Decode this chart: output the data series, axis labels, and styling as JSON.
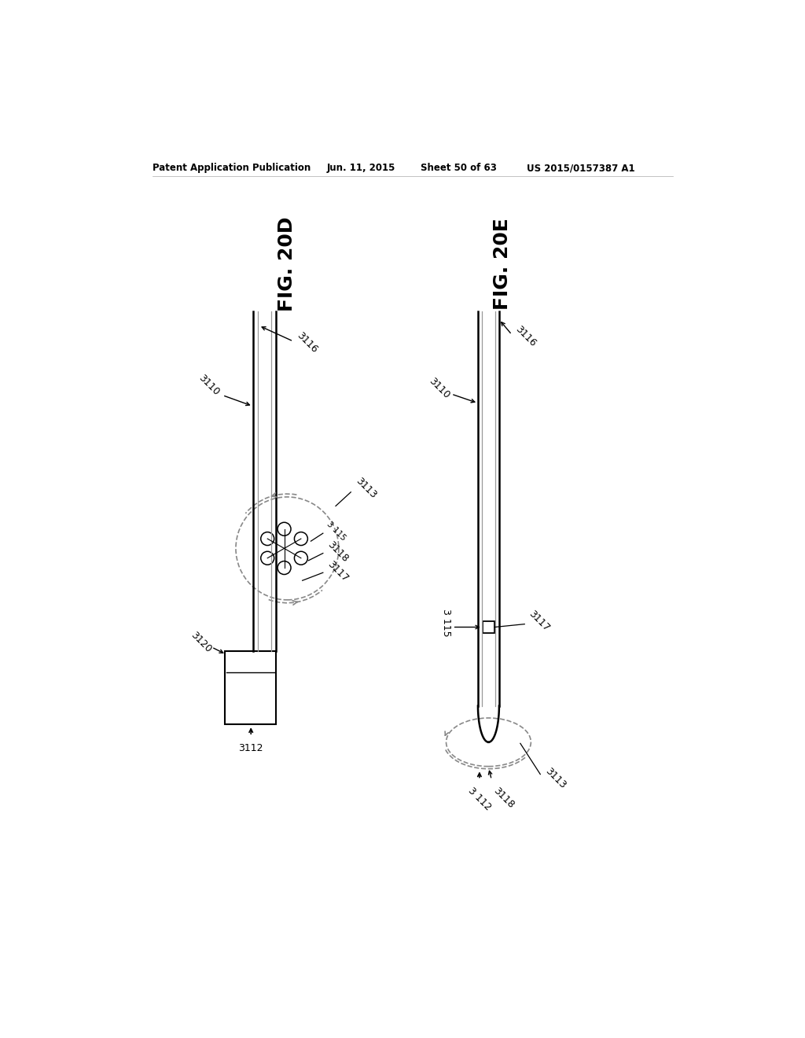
{
  "bg_color": "#ffffff",
  "header_text": "Patent Application Publication",
  "header_date": "Jun. 11, 2015",
  "header_sheet": "Sheet 50 of 63",
  "header_patent": "US 2015/0157387 A1",
  "fig_d_title": "FIG. 20D",
  "fig_e_title": "FIG. 20E",
  "line_color": "#000000",
  "dashed_color": "#888888"
}
